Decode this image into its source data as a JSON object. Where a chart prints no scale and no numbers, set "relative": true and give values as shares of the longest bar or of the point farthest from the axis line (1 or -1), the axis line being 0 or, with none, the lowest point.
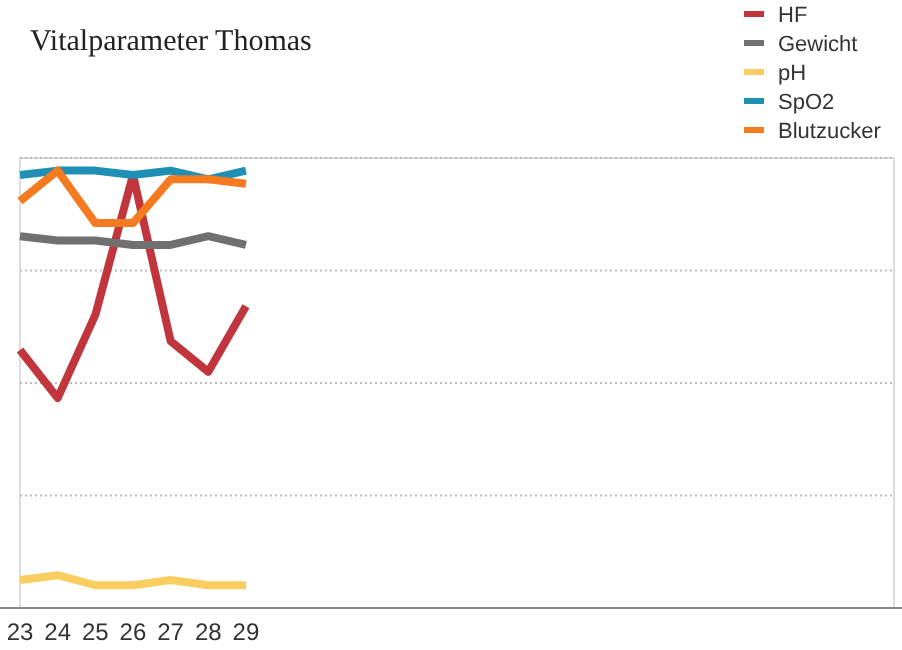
{
  "chart_data": {
    "type": "line",
    "title": "Vitalparameter Thomas",
    "relative": true,
    "grid": "y",
    "legend": "top right",
    "marker": "none",
    "line_style": "solid",
    "categories": [
      "23",
      "24",
      "25",
      "26",
      "27",
      "28",
      "29",
      null,
      null,
      null,
      null,
      null,
      null,
      null,
      null,
      null,
      null,
      null,
      null,
      null,
      null,
      null,
      null,
      null
    ],
    "series": [
      {
        "name": "HF",
        "color": "#c0363c",
        "values": [
          0.59,
          0.48,
          0.67,
          0.99,
          0.61,
          0.54,
          0.69,
          null,
          null,
          null,
          null,
          null,
          null,
          null,
          null,
          null,
          null,
          null,
          null,
          null,
          null,
          null,
          null,
          null
        ]
      },
      {
        "name": "Gewicht",
        "color": "#707070",
        "values": [
          0.85,
          0.84,
          0.84,
          0.83,
          0.83,
          0.85,
          0.83,
          null,
          null,
          null,
          null,
          null,
          null,
          null,
          null,
          null,
          null,
          null,
          null,
          null,
          null,
          null,
          null,
          null
        ]
      },
      {
        "name": "pH",
        "color": "#f9cd5f",
        "values": [
          0.064,
          0.075,
          0.052,
          0.052,
          0.064,
          0.052,
          0.052,
          null,
          null,
          null,
          null,
          null,
          null,
          null,
          null,
          null,
          null,
          null,
          null,
          null,
          null,
          null,
          null,
          null
        ]
      },
      {
        "name": "SpO2",
        "color": "#1f8fb5",
        "values": [
          0.99,
          1.0,
          1.0,
          0.99,
          1.0,
          0.98,
          1.0,
          null,
          null,
          null,
          null,
          null,
          null,
          null,
          null,
          null,
          null,
          null,
          null,
          null,
          null,
          null,
          null,
          null
        ]
      },
      {
        "name": "Blutzucker",
        "color": "#f47b20",
        "values": [
          0.93,
          1.0,
          0.88,
          0.88,
          0.98,
          0.98,
          0.97,
          null,
          null,
          null,
          null,
          null,
          null,
          null,
          null,
          null,
          null,
          null,
          null,
          null,
          null,
          null,
          null,
          null
        ]
      }
    ]
  }
}
